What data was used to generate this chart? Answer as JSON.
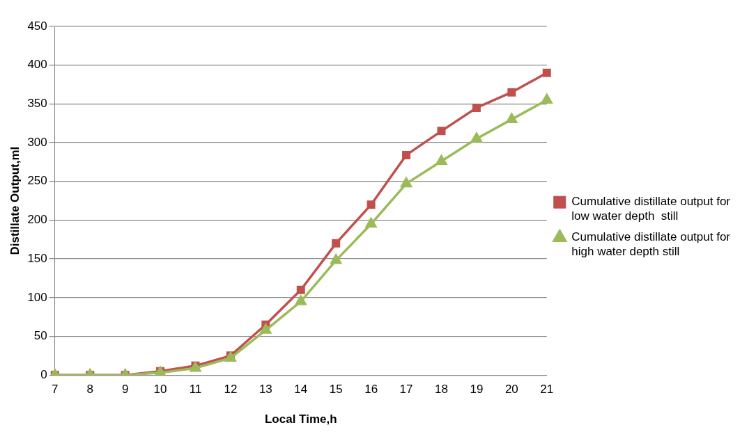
{
  "chart_data": {
    "type": "line",
    "xlabel": "Local Time,h",
    "ylabel": "Distillate Output,ml",
    "categories": [
      "7",
      "8",
      "9",
      "10",
      "11",
      "12",
      "13",
      "14",
      "15",
      "16",
      "17",
      "18",
      "19",
      "20",
      "21"
    ],
    "series": [
      {
        "name": "Cumulative distillate output for low water depth  still",
        "color": "#c0504d",
        "marker": "square",
        "values": [
          0,
          0,
          0,
          5,
          12,
          25,
          65,
          110,
          170,
          220,
          284,
          315,
          345,
          365,
          390
        ]
      },
      {
        "name": "Cumulative distillate output for high water depth still",
        "color": "#9bbb59",
        "marker": "triangle",
        "values": [
          0,
          0,
          0,
          3,
          9,
          22,
          58,
          95,
          148,
          195,
          247,
          276,
          305,
          330,
          355
        ]
      }
    ],
    "ylim": [
      0,
      450
    ],
    "yticks": [
      0,
      50,
      100,
      150,
      200,
      250,
      300,
      350,
      400,
      450
    ],
    "grid": "y",
    "legend": "right"
  }
}
